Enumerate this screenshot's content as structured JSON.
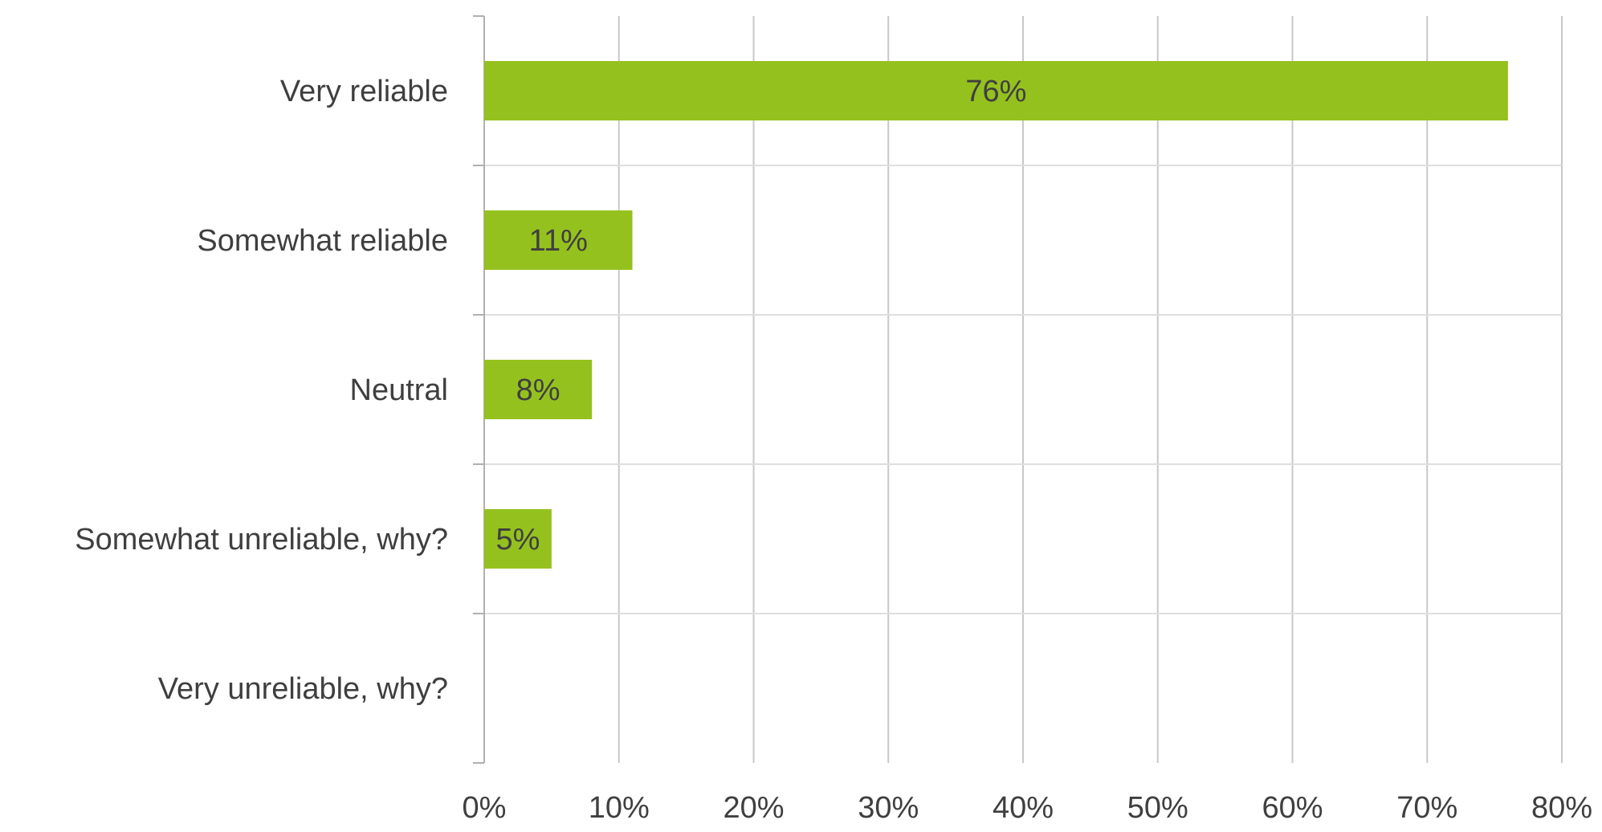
{
  "chart_data": {
    "type": "bar",
    "orientation": "horizontal",
    "categories": [
      "Very reliable",
      "Somewhat reliable",
      "Neutral",
      "Somewhat unreliable, why?",
      "Very unreliable, why?"
    ],
    "values": [
      76,
      11,
      8,
      5,
      0
    ],
    "data_labels": [
      "76%",
      "11%",
      "8%",
      "5%",
      ""
    ],
    "xlim": [
      0,
      80
    ],
    "xticks": [
      0,
      10,
      20,
      30,
      40,
      50,
      60,
      70,
      80
    ],
    "xtick_labels": [
      "0%",
      "10%",
      "20%",
      "30%",
      "40%",
      "50%",
      "60%",
      "70%",
      "80%"
    ],
    "grid": true,
    "legend": "none",
    "bar_color": "#95c11f",
    "grid_color": "#c8c8c8",
    "text_color": "#3f3f3f"
  }
}
